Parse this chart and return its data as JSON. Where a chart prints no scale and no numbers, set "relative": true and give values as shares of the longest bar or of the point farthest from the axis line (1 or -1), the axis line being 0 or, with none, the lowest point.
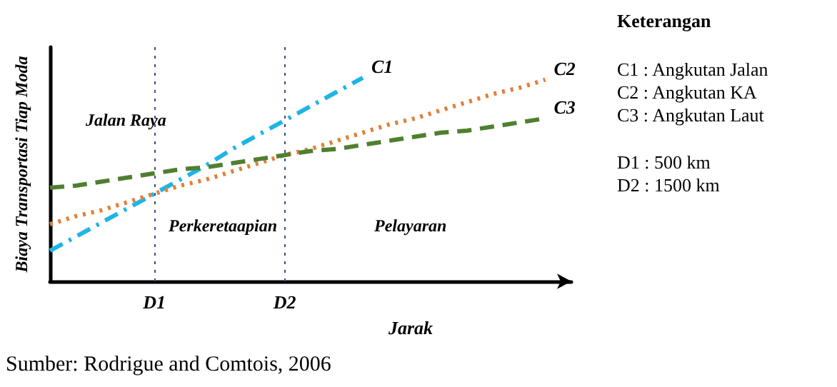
{
  "chart_data": {
    "type": "line",
    "relative": true,
    "xlabel": "Jarak",
    "ylabel": "Biaya Transportasi Tiap Moda",
    "categories": [
      null,
      null,
      null,
      null,
      "D1",
      null,
      null,
      null,
      null,
      "D2",
      null,
      null,
      null,
      null,
      null,
      null,
      null,
      null,
      null,
      null,
      null
    ],
    "series": [
      {
        "name": "C1",
        "color": "#1fb4e6",
        "line_style": "dashdot",
        "values": [
          0.15,
          0.22,
          0.29,
          0.36,
          0.43,
          0.5,
          0.57,
          0.65,
          0.72,
          0.79,
          0.86,
          0.93,
          1.0,
          null,
          null,
          null,
          null,
          null,
          null,
          null,
          null
        ]
      },
      {
        "name": "C2",
        "color": "#e0803a",
        "line_style": "dotted",
        "values": [
          0.28,
          0.32,
          0.35,
          0.39,
          0.43,
          0.47,
          0.5,
          0.54,
          0.58,
          0.62,
          0.65,
          0.69,
          0.73,
          0.77,
          0.8,
          0.84,
          0.88,
          0.92,
          0.95,
          0.99,
          null
        ]
      },
      {
        "name": "C3",
        "color": "#4f7f2f",
        "line_style": "dashed",
        "values": [
          0.46,
          0.47,
          0.49,
          0.51,
          0.53,
          0.55,
          0.56,
          0.58,
          0.6,
          0.62,
          0.64,
          0.65,
          0.67,
          0.69,
          0.71,
          0.73,
          0.74,
          0.76,
          0.78,
          0.8,
          null
        ]
      }
    ],
    "ref_lines": [
      {
        "axis": "x",
        "value": "D1",
        "color": "#3a4a8c",
        "line_style": "dotted"
      },
      {
        "axis": "x",
        "value": "D2",
        "color": "#3a4a8c",
        "line_style": "dotted"
      }
    ],
    "annotations": [
      "Jalan Raya",
      "Perkeretaapian",
      "Pelayaran",
      "Keterangan",
      "C1 : Angkutan Jalan",
      "C2 : Angkutan KA",
      "C3 : Angkutan Laut",
      "D1 : 500 km",
      "D2 : 1500 km",
      "Sumber: Rodrigue and Comtois, 2006"
    ],
    "grid": false,
    "legend": false
  }
}
